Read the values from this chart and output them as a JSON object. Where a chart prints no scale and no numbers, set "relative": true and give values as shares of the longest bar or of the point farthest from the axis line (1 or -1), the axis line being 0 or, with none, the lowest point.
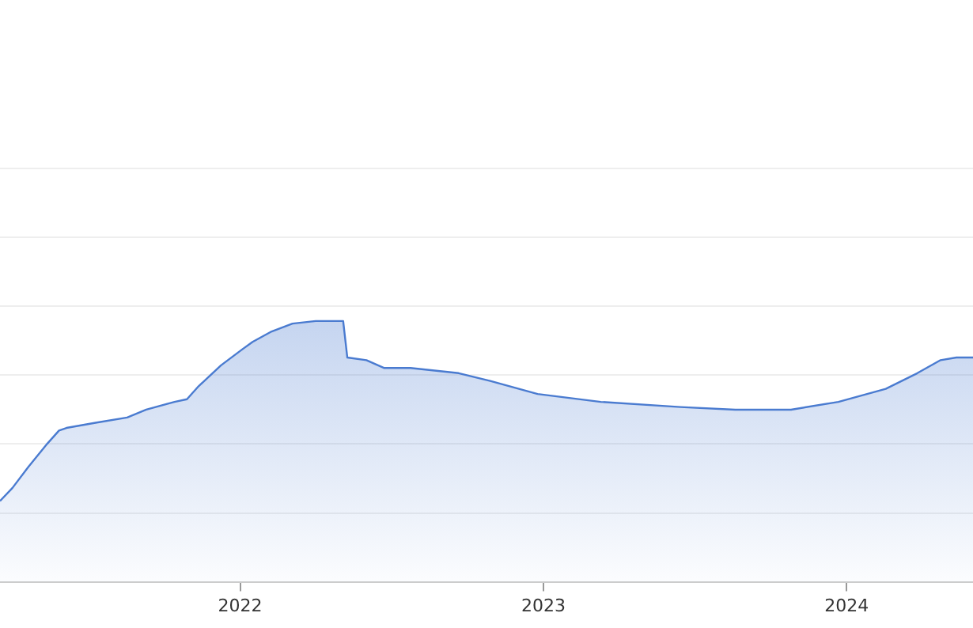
{
  "chart_data": {
    "type": "area",
    "relative": true,
    "grid": "y",
    "color": "#4a7bd0",
    "x": [
      "2021-03-18",
      "2021-04-02",
      "2021-04-21",
      "2021-05-14",
      "2021-05-28",
      "2021-06-06",
      "2021-07-11",
      "2021-08-18",
      "2021-09-10",
      "2021-10-14",
      "2021-10-29",
      "2021-11-12",
      "2021-12-09",
      "2022-01-03",
      "2022-01-16",
      "2022-02-08",
      "2022-03-05",
      "2022-04-02",
      "2022-05-05",
      "2022-05-10",
      "2022-06-02",
      "2022-06-23",
      "2022-07-25",
      "2022-09-21",
      "2022-10-29",
      "2022-12-25",
      "2023-03-11",
      "2023-06-15",
      "2023-08-20",
      "2023-09-18",
      "2023-10-26",
      "2023-12-22",
      "2024-02-17",
      "2024-03-26",
      "2024-04-23",
      "2024-05-12",
      "2024-06-01"
    ],
    "values": [
      0.31,
      0.36,
      0.44,
      0.53,
      0.58,
      0.59,
      0.61,
      0.63,
      0.66,
      0.69,
      0.7,
      0.75,
      0.83,
      0.89,
      0.92,
      0.96,
      0.99,
      1,
      1,
      0.86,
      0.85,
      0.82,
      0.82,
      0.8,
      0.77,
      0.72,
      0.69,
      0.67,
      0.66,
      0.66,
      0.66,
      0.69,
      0.74,
      0.8,
      0.85,
      0.86,
      0.86
    ],
    "xlim": [
      "2021-03-18",
      "2024-06-01"
    ],
    "xticks": [
      {
        "value": "2022",
        "label": "2022"
      },
      {
        "value": "2023",
        "label": "2023"
      },
      {
        "value": "2024",
        "label": "2024"
      }
    ]
  }
}
